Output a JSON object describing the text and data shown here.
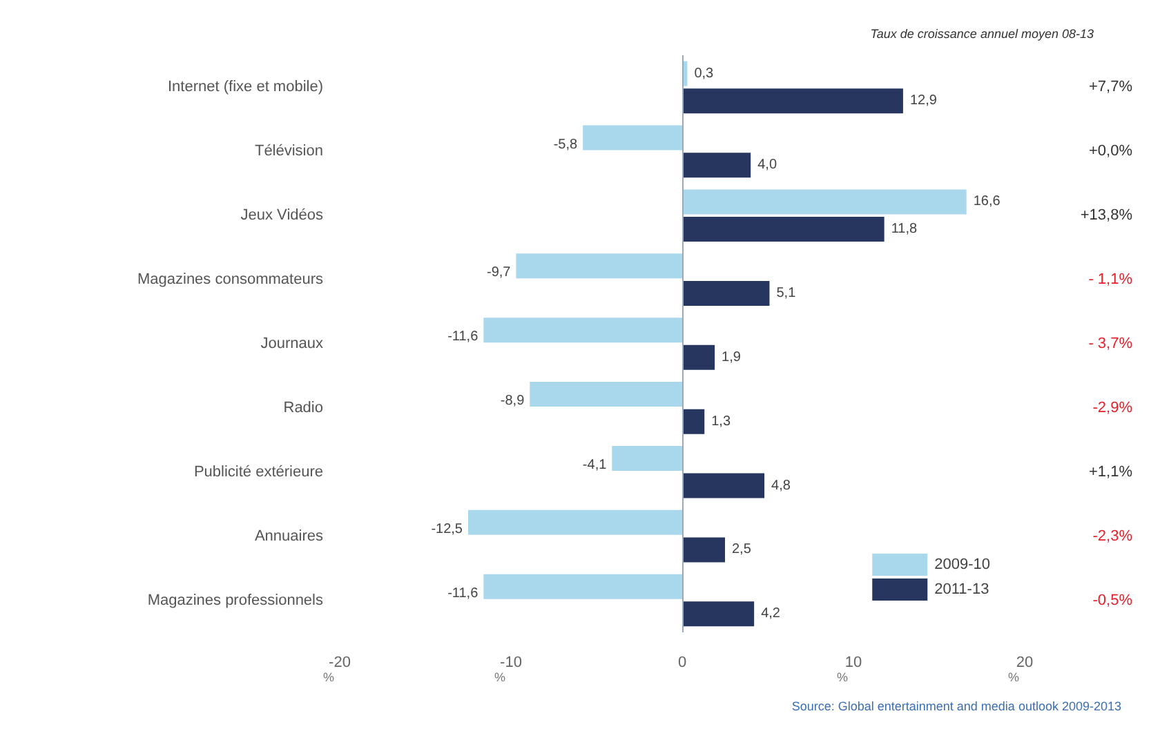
{
  "chart_data": {
    "type": "bar",
    "orientation": "horizontal",
    "categories": [
      "Internet (fixe et mobile)",
      "Télévision",
      "Jeux Vidéos",
      "Magazines consommateurs",
      "Journaux",
      "Radio",
      "Publicité extérieure",
      "Annuaires",
      "Magazines professionnels"
    ],
    "series": [
      {
        "name": "2009-10",
        "color": "#a9d8ec",
        "values": [
          0.3,
          -5.8,
          16.6,
          -9.7,
          -11.6,
          -8.9,
          -4.1,
          -12.5,
          -11.6
        ],
        "value_labels": [
          "0,3",
          "-5,8",
          "16,6",
          "-9,7",
          "-11,6",
          "-8,9",
          "-4,1",
          "-12,5",
          "-11,6"
        ]
      },
      {
        "name": "2011-13",
        "color": "#26365f",
        "values": [
          12.9,
          4.0,
          11.8,
          5.1,
          1.9,
          1.3,
          4.8,
          2.5,
          4.2
        ],
        "value_labels": [
          "12,9",
          "4,0",
          "11,8",
          "5,1",
          "1,9",
          "1,3",
          "4,8",
          "2,5",
          "4,2"
        ]
      }
    ],
    "xlim": [
      -20,
      20
    ],
    "xticks": [
      -20,
      -10,
      0,
      10,
      20
    ],
    "xlabel": "%",
    "legend": "bottom right",
    "grid": false,
    "ref_lines": [
      {
        "axis": "x",
        "value": 0,
        "color": "#9aaabb"
      }
    ],
    "annotations": [
      "Taux de croissance annuel moyen 08-13",
      "Source: Global entertainment and media outlook 2009-2013",
      "+7,7%",
      "+0,0%",
      "+13,8%",
      "- 1,1%",
      "- 3,7%",
      "-2,9%",
      "+1,1%",
      "-2,3%",
      "-0,5%"
    ]
  }
}
